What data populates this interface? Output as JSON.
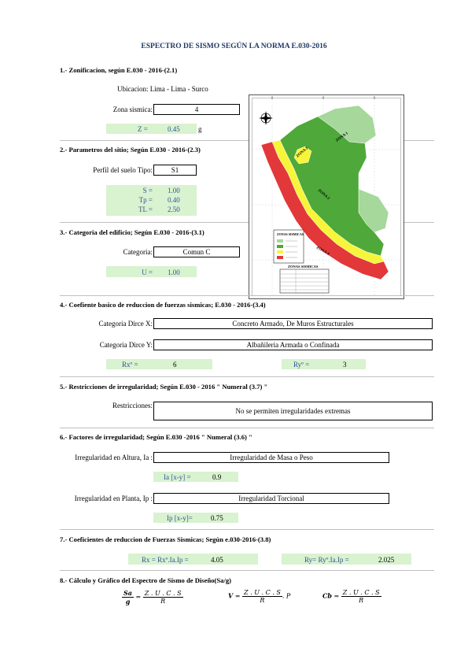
{
  "title": "ESPECTRO DE SISMO SEGÚN LA NORMA E.030-2016",
  "s1": {
    "heading": "1.- Zonificacion, según E.030 - 2016-(2.1)",
    "ubicacion": "Ubicacion: Lima - Lima - Surco",
    "zona_label": "Zona sismica:",
    "zona_value": "4",
    "z_label": "Z =",
    "z_value": "0.45",
    "z_unit": "g"
  },
  "s2": {
    "heading": "2.- Parametros del sitio; Según E.030 - 2016-(2.3)",
    "perfil_label": "Perfil del suelo  Tipo:",
    "perfil_value": "S1",
    "s_label": "S =",
    "s_value": "1.00",
    "tp_label": "Tp =",
    "tp_value": "0.40",
    "tl_label": "TL =",
    "tl_value": "2.50"
  },
  "s3": {
    "heading": "3.- Categoria del edificio; Según E.030 - 2016-(3.1)",
    "cat_label": "Categoria:",
    "cat_value": "Comun C",
    "u_label": "U =",
    "u_value": "1.00"
  },
  "s4": {
    "heading": "4.- Coefiente basico de reduccion de fuerzas sismicas; E.030 - 2016-(3.4)",
    "x_label": "Categoria Dirce X:",
    "x_value": "Concreto Armado, De Muros Estructurales",
    "y_label": "Categoria Dirce Y:",
    "y_value": "Albañileria Armada o Confinada",
    "rx_label": "Rxº =",
    "rx_value": "6",
    "ry_label": "Ryº =",
    "ry_value": "3"
  },
  "s5": {
    "heading": "5.- Restricciones de irregularidad; Según E.030 - 2016 \" Numeral (3.7) \"",
    "label": "Restricciones:",
    "value": "No se permiten irregularidades extremas"
  },
  "s6": {
    "heading": "6.- Factores de irregularidad; Según E.030 -2016 \" Numeral (3.6) \"",
    "ia_label": "Irregularidad en Altura, Ia :",
    "ia_value": "Irregularidad de Masa o Peso",
    "ia_k": "Ia [x-y] =",
    "ia_v": "0.9",
    "ip_label": "Irregularidad en Planta, Ip :",
    "ip_value": "Irregularidad Torcional",
    "ip_k": "Ip [x-y]=",
    "ip_v": "0.75"
  },
  "s7": {
    "heading": "7.- Coeficientes de reduccion de Fuerzas Sismicas; Según e.030-2016-(3.8)",
    "rx_k": "Rx = Rxº.Ia.Ip =",
    "rx_v": "4.05",
    "ry_k": "Ry= Ryº.Ia.Ip =",
    "ry_v": "2.025"
  },
  "s8": {
    "heading": "8.- Cálculo y Gráfico del Espectro de Sismo de Diseño(Sa/g)",
    "f1_lhs_num": "Sa",
    "f1_lhs_den": "g",
    "f1_num": "Z . U . C . S",
    "f1_den": "R",
    "f2_lhs": "V",
    "f2_num": "Z . U . C . S",
    "f2_den": "R",
    "f2_tail": ". P",
    "f3_lhs": "Cb",
    "f3_num": "Z . U . C . S",
    "f3_den": "R"
  },
  "map": {
    "zone_labels": [
      "ZONA 1",
      "ZONA 2",
      "ZONA 3",
      "ZONA 4"
    ],
    "legend_title": "ZONAS SISMICAS",
    "table_title": "ZONAS SISMICAS",
    "colors": {
      "z1": "#a6d79b",
      "z2": "#4fa83a",
      "z3": "#f7f53a",
      "z4": "#e2383a"
    }
  }
}
